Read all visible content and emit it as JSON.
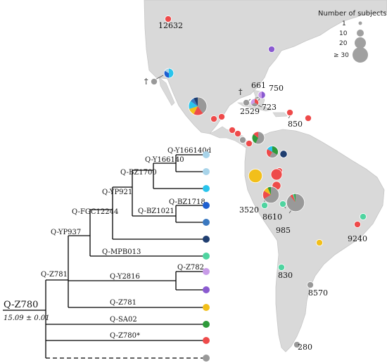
{
  "colors": {
    "land": "#d7d7d7",
    "coast": "#c4c4c4",
    "grey": "#999999",
    "cyan": "#29c4ec",
    "light_blue": "#a8d4ea",
    "mid_blue": "#3a78c0",
    "dark_blue": "#1f3e70",
    "blue": "#1e5fd0",
    "teal": "#4fd4a0",
    "lilac": "#c89be8",
    "purple": "#8a5ad0",
    "yellow": "#f2bf1a",
    "green": "#2e9a3a",
    "red": "#ee4a4a"
  },
  "legend": {
    "title": "Number of subjects",
    "items": [
      {
        "label": "1"
      },
      {
        "label": "10"
      },
      {
        "label": "20"
      },
      {
        "label": "≥ 30"
      }
    ]
  },
  "tree": {
    "root": {
      "label": "Q-Z780",
      "age": "15.09",
      "pm": "± 0.01"
    },
    "nodes": [
      {
        "id": "y166140d",
        "label": "Q-Y166140d"
      },
      {
        "id": "y166140",
        "label": "Q-Y166140"
      },
      {
        "id": "bz1700",
        "label": "Q-BZ1700"
      },
      {
        "id": "yp921",
        "label": "Q-YP921"
      },
      {
        "id": "fgc12244",
        "label": "Q-FGC12244"
      },
      {
        "id": "bz1021",
        "label": "Q-BZ1021"
      },
      {
        "id": "bz1718",
        "label": "Q-BZ1718"
      },
      {
        "id": "yp937",
        "label": "Q-YP937"
      },
      {
        "id": "mpb013",
        "label": "Q-MPB013"
      },
      {
        "id": "z781a",
        "label": "Q-Z781"
      },
      {
        "id": "y2816",
        "label": "Q-Y2816"
      },
      {
        "id": "z782",
        "label": "Q-Z782"
      },
      {
        "id": "z781b",
        "label": "Q-Z781"
      },
      {
        "id": "sa02",
        "label": "Q-SA02"
      },
      {
        "id": "z780s",
        "label": "Q-Z780*"
      }
    ],
    "tips": [
      {
        "color_key": "light_blue"
      },
      {
        "color_key": "light_blue"
      },
      {
        "color_key": "cyan"
      },
      {
        "color_key": "blue"
      },
      {
        "color_key": "mid_blue"
      },
      {
        "color_key": "dark_blue"
      },
      {
        "color_key": "teal"
      },
      {
        "color_key": "lilac"
      },
      {
        "color_key": "purple"
      },
      {
        "color_key": "yellow"
      },
      {
        "color_key": "green"
      },
      {
        "color_key": "red"
      },
      {
        "color_key": "grey"
      }
    ]
  },
  "map_labels": [
    {
      "id": "n12632",
      "text": "12632"
    },
    {
      "id": "n661",
      "text": "661"
    },
    {
      "id": "n750",
      "text": "750"
    },
    {
      "id": "n723",
      "text": "723"
    },
    {
      "id": "n2529",
      "text": "2529"
    },
    {
      "id": "n850",
      "text": "850"
    },
    {
      "id": "n3520",
      "text": "3520"
    },
    {
      "id": "n8610",
      "text": "8610"
    },
    {
      "id": "n985",
      "text": "985"
    },
    {
      "id": "n9240",
      "text": "9240"
    },
    {
      "id": "n830",
      "text": "830"
    },
    {
      "id": "n8570",
      "text": "8570"
    },
    {
      "id": "n280",
      "text": "280"
    },
    {
      "id": "dagger1",
      "text": "†"
    },
    {
      "id": "dagger2",
      "text": "†"
    }
  ],
  "sites": [
    {
      "id": "site-12632",
      "subjects": 1,
      "slices": [
        {
          "color_key": "red",
          "value": 1
        }
      ]
    },
    {
      "id": "site-east-us",
      "subjects": 1,
      "slices": [
        {
          "color_key": "purple",
          "value": 1
        }
      ]
    },
    {
      "id": "site-sw-us",
      "subjects": 6,
      "slices": [
        {
          "color_key": "cyan",
          "value": 3
        },
        {
          "color_key": "blue",
          "value": 2
        },
        {
          "color_key": "light_blue",
          "value": 1
        }
      ]
    },
    {
      "id": "site-baja",
      "subjects": 1,
      "slices": [
        {
          "color_key": "grey",
          "value": 1
        }
      ]
    },
    {
      "id": "site-mexico",
      "subjects": 40,
      "slices": [
        {
          "color_key": "grey",
          "value": 16
        },
        {
          "color_key": "red",
          "value": 7
        },
        {
          "color_key": "yellow",
          "value": 5
        },
        {
          "color_key": "cyan",
          "value": 6
        },
        {
          "color_key": "mid_blue",
          "value": 3
        },
        {
          "color_key": "dark_blue",
          "value": 3
        }
      ]
    },
    {
      "id": "site-mx-s1",
      "subjects": 1,
      "slices": [
        {
          "color_key": "red",
          "value": 1
        }
      ]
    },
    {
      "id": "site-mx-s2",
      "subjects": 1,
      "slices": [
        {
          "color_key": "red",
          "value": 1
        }
      ]
    },
    {
      "id": "site-cuba-w",
      "subjects": 1,
      "slices": [
        {
          "color_key": "grey",
          "value": 1
        }
      ]
    },
    {
      "id": "site-cuba",
      "subjects": 3,
      "slices": [
        {
          "color_key": "red",
          "value": 1
        },
        {
          "color_key": "grey",
          "value": 1
        },
        {
          "color_key": "lilac",
          "value": 1
        }
      ]
    },
    {
      "id": "site-bahamas",
      "subjects": 2,
      "slices": [
        {
          "color_key": "purple",
          "value": 1
        },
        {
          "color_key": "lilac",
          "value": 1
        }
      ]
    },
    {
      "id": "site-haiti",
      "subjects": 1,
      "slices": [
        {
          "color_key": "red",
          "value": 1
        }
      ]
    },
    {
      "id": "site-carib-e",
      "subjects": 1,
      "slices": [
        {
          "color_key": "red",
          "value": 1
        }
      ]
    },
    {
      "id": "site-ca-1",
      "subjects": 1,
      "slices": [
        {
          "color_key": "red",
          "value": 1
        }
      ]
    },
    {
      "id": "site-ca-2",
      "subjects": 1,
      "slices": [
        {
          "color_key": "red",
          "value": 1
        }
      ]
    },
    {
      "id": "site-ca-3",
      "subjects": 1,
      "slices": [
        {
          "color_key": "grey",
          "value": 1
        }
      ]
    },
    {
      "id": "site-ca-4",
      "subjects": 1,
      "slices": [
        {
          "color_key": "red",
          "value": 1
        }
      ]
    },
    {
      "id": "site-venezuela",
      "subjects": 14,
      "slices": [
        {
          "color_key": "grey",
          "value": 8
        },
        {
          "color_key": "green",
          "value": 4
        },
        {
          "color_key": "red",
          "value": 2
        }
      ]
    },
    {
      "id": "site-colombia",
      "subjects": 12,
      "slices": [
        {
          "color_key": "green",
          "value": 4
        },
        {
          "color_key": "grey",
          "value": 3
        },
        {
          "color_key": "red",
          "value": 3
        },
        {
          "color_key": "cyan",
          "value": 2
        }
      ]
    },
    {
      "id": "site-col-db",
      "subjects": 2,
      "slices": [
        {
          "color_key": "dark_blue",
          "value": 1
        }
      ]
    },
    {
      "id": "site-col-red",
      "subjects": 1,
      "slices": [
        {
          "color_key": "red",
          "value": 1
        }
      ]
    },
    {
      "id": "site-ecuador-y",
      "subjects": 18,
      "slices": [
        {
          "color_key": "yellow",
          "value": 1
        }
      ]
    },
    {
      "id": "site-ecuador-r",
      "subjects": 10,
      "slices": [
        {
          "color_key": "red",
          "value": 1
        }
      ]
    },
    {
      "id": "site-peru-r",
      "subjects": 4,
      "slices": [
        {
          "color_key": "red",
          "value": 1
        }
      ]
    },
    {
      "id": "site-peru",
      "subjects": 30,
      "slices": [
        {
          "color_key": "grey",
          "value": 20
        },
        {
          "color_key": "red",
          "value": 5
        },
        {
          "color_key": "yellow",
          "value": 3
        },
        {
          "color_key": "green",
          "value": 2
        }
      ]
    },
    {
      "id": "site-peru-t1",
      "subjects": 1,
      "slices": [
        {
          "color_key": "teal",
          "value": 1
        }
      ]
    },
    {
      "id": "site-peru-t2",
      "subjects": 1,
      "slices": [
        {
          "color_key": "teal",
          "value": 1
        }
      ]
    },
    {
      "id": "site-bolivia",
      "subjects": 38,
      "slices": [
        {
          "color_key": "grey",
          "value": 34
        },
        {
          "color_key": "red",
          "value": 2
        },
        {
          "color_key": "teal",
          "value": 1
        },
        {
          "color_key": "green",
          "value": 1
        }
      ]
    },
    {
      "id": "site-paraguay",
      "subjects": 1,
      "slices": [
        {
          "color_key": "yellow",
          "value": 1
        }
      ]
    },
    {
      "id": "site-br-t",
      "subjects": 1,
      "slices": [
        {
          "color_key": "teal",
          "value": 1
        }
      ]
    },
    {
      "id": "site-br-r",
      "subjects": 1,
      "slices": [
        {
          "color_key": "red",
          "value": 1
        }
      ]
    },
    {
      "id": "site-830",
      "subjects": 1,
      "slices": [
        {
          "color_key": "teal",
          "value": 1
        }
      ]
    },
    {
      "id": "site-8570",
      "subjects": 1,
      "slices": [
        {
          "color_key": "grey",
          "value": 1
        }
      ]
    },
    {
      "id": "site-280",
      "subjects": 1,
      "slices": [
        {
          "color_key": "grey",
          "value": 1
        }
      ]
    }
  ]
}
